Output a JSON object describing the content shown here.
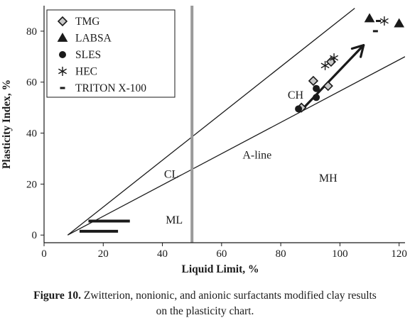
{
  "chart_data": {
    "type": "scatter",
    "xlabel": "Liquid Limit, %",
    "ylabel": "Plasticity Index, %",
    "xlim": [
      0,
      122
    ],
    "ylim": [
      -3,
      90
    ],
    "x_ticks": [
      0,
      20,
      40,
      60,
      80,
      100,
      120
    ],
    "y_ticks": [
      0,
      20,
      40,
      60,
      80
    ],
    "legend_position": "top-left",
    "grid": false,
    "series": [
      {
        "name": "TMG",
        "marker": "diamond",
        "points": [
          [
            87,
            50
          ],
          [
            91,
            60.5
          ],
          [
            96,
            58.5
          ],
          [
            97,
            68
          ]
        ]
      },
      {
        "name": "LABSA",
        "marker": "triangle",
        "points": [
          [
            110,
            85
          ],
          [
            120,
            83
          ]
        ]
      },
      {
        "name": "SLES",
        "marker": "circle",
        "points": [
          [
            86,
            49.5
          ],
          [
            92,
            54
          ],
          [
            92,
            57.5
          ]
        ]
      },
      {
        "name": "HEC",
        "marker": "asterisk",
        "points": [
          [
            95,
            66.5
          ],
          [
            98,
            69.5
          ],
          [
            115,
            84
          ]
        ]
      },
      {
        "name": "TRITON X-100",
        "marker": "dash",
        "points": [
          [
            112,
            80
          ],
          [
            113,
            84
          ]
        ]
      }
    ],
    "reference_lines": [
      {
        "name": "U-line",
        "points": [
          [
            8,
            0
          ],
          [
            105,
            89
          ]
        ]
      },
      {
        "name": "A-line",
        "points": [
          [
            8,
            0
          ],
          [
            122,
            70
          ]
        ]
      },
      {
        "name": "LL=50",
        "points": [
          [
            50,
            -3
          ],
          [
            50,
            90
          ]
        ]
      }
    ],
    "clay_band": [
      {
        "points": [
          [
            15,
            5.5
          ],
          [
            29,
            5.5
          ]
        ]
      },
      {
        "points": [
          [
            12,
            1.5
          ],
          [
            25,
            1.5
          ]
        ]
      }
    ],
    "trend_arrow": {
      "from": [
        87,
        49
      ],
      "to": [
        108,
        74.5
      ]
    },
    "region_labels": [
      {
        "text": "CH",
        "x": 85,
        "y": 53.5
      },
      {
        "text": "CL",
        "x": 43,
        "y": 22.5
      },
      {
        "text": "ML",
        "x": 44,
        "y": 4.5
      },
      {
        "text": "MH",
        "x": 96,
        "y": 21
      },
      {
        "text": "A-line",
        "x": 72,
        "y": 30
      }
    ]
  },
  "caption": {
    "label": "Figure 10.",
    "line1": " Zwitterion, nonionic, and anionic surfactants modified clay results",
    "line2": "on the plasticity chart."
  }
}
